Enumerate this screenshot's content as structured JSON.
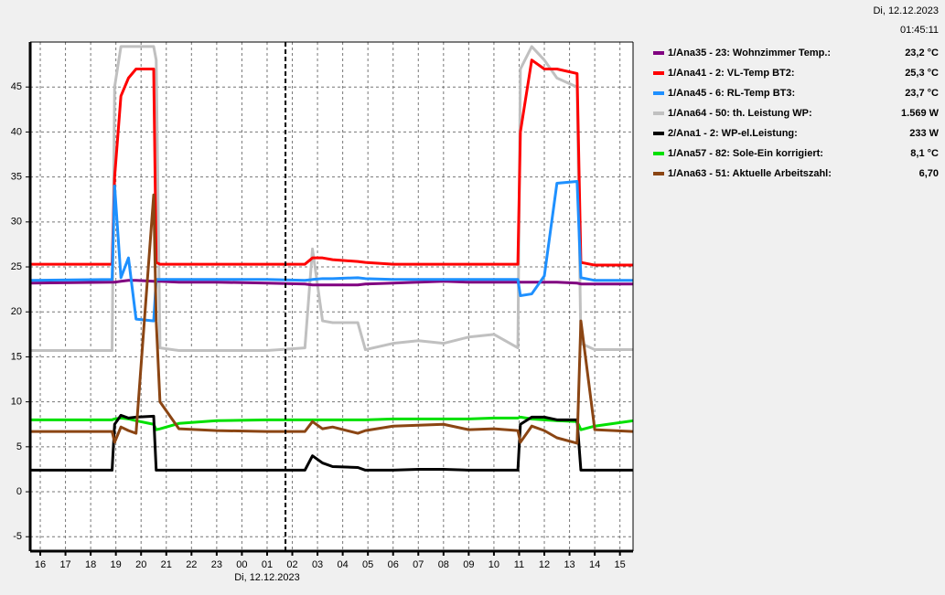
{
  "header": {
    "date": "Di, 12.12.2023",
    "time": "01:45:11"
  },
  "chart_data": {
    "type": "line",
    "x": [
      15.6,
      18.85,
      18.95,
      19.2,
      19.5,
      19.8,
      20.5,
      20.6,
      20.75,
      21.5,
      23,
      25,
      26.5,
      26.8,
      27.2,
      27.6,
      28.6,
      28.9,
      30,
      31,
      32,
      33,
      34,
      34.95,
      35.05,
      35.5,
      36.0,
      36.5,
      37.3,
      37.45,
      38,
      39.52
    ],
    "xlim": [
      15.6,
      39.52
    ],
    "xticks": [
      16,
      17,
      18,
      19,
      20,
      21,
      22,
      23,
      {
        "value": 24,
        "label": "00"
      },
      {
        "value": 25,
        "label": "01"
      },
      {
        "value": 26,
        "label": "02"
      },
      {
        "value": 27,
        "label": "03"
      },
      {
        "value": 28,
        "label": "04"
      },
      {
        "value": 29,
        "label": "05"
      },
      {
        "value": 30,
        "label": "06"
      },
      {
        "value": 31,
        "label": "07"
      },
      {
        "value": 32,
        "label": "08"
      },
      {
        "value": 33,
        "label": "09"
      },
      {
        "value": 34,
        "label": "10"
      },
      {
        "value": 35,
        "label": "11"
      },
      {
        "value": 36,
        "label": "12"
      },
      {
        "value": 37,
        "label": "13"
      },
      {
        "value": 38,
        "label": "14"
      },
      {
        "value": 39,
        "label": "15"
      }
    ],
    "date_label": "Di, 12.12.2023",
    "cursor_x": 25.73,
    "ylim": [
      -6.6,
      50
    ],
    "yticks": [
      -5,
      0,
      5,
      10,
      15,
      20,
      25,
      30,
      35,
      40,
      45
    ],
    "grid": true,
    "series": [
      {
        "name": "1/Ana35 - 23: Wohnzimmer Temp.:",
        "current": "23,2 °C",
        "color": "#800080",
        "values": [
          23.2,
          23.3,
          23.3,
          23.4,
          23.5,
          23.5,
          23.4,
          23.4,
          23.4,
          23.3,
          23.3,
          23.2,
          23.1,
          23.0,
          23.0,
          23.0,
          23.0,
          23.1,
          23.2,
          23.3,
          23.4,
          23.3,
          23.3,
          23.3,
          23.3,
          23.3,
          23.3,
          23.3,
          23.2,
          23.1,
          23.1,
          23.1
        ]
      },
      {
        "name": "1/Ana41 - 2: VL-Temp BT2:",
        "current": "25,3 °C",
        "color": "#ff0000",
        "values": [
          25.3,
          25.3,
          35,
          44,
          46,
          47,
          47,
          25.5,
          25.3,
          25.3,
          25.3,
          25.3,
          25.3,
          26.0,
          26.0,
          25.8,
          25.6,
          25.5,
          25.3,
          25.3,
          25.3,
          25.3,
          25.3,
          25.3,
          40,
          48,
          47,
          47,
          46.5,
          25.5,
          25.2,
          25.2
        ]
      },
      {
        "name": "1/Ana45 - 6: RL-Temp BT3:",
        "current": "23,7 °C",
        "color": "#1e90ff",
        "values": [
          23.5,
          23.6,
          34,
          23.8,
          26,
          19.2,
          19,
          23.6,
          23.6,
          23.6,
          23.6,
          23.6,
          23.5,
          23.6,
          23.7,
          23.7,
          23.8,
          23.7,
          23.6,
          23.6,
          23.6,
          23.6,
          23.6,
          23.6,
          21.8,
          22.0,
          24,
          34.3,
          34.5,
          23.8,
          23.5,
          23.5
        ]
      },
      {
        "name": "1/Ana64 - 50: th. Leistung WP:",
        "current": "1.569 W",
        "color": "#c0c0c0",
        "values": [
          15.7,
          15.7,
          45,
          49.5,
          49.5,
          49.5,
          49.5,
          48,
          16,
          15.7,
          15.7,
          15.7,
          16,
          27,
          19,
          18.8,
          18.8,
          15.8,
          16.5,
          16.8,
          16.5,
          17.2,
          17.5,
          16,
          47,
          49.5,
          48,
          46,
          45,
          16.5,
          15.8,
          15.8
        ]
      },
      {
        "name": "2/Ana1 - 2: WP-el.Leistung:",
        "current": "233 W",
        "color": "#000000",
        "values": [
          2.4,
          2.4,
          7.5,
          8.5,
          8.2,
          8.3,
          8.4,
          2.4,
          2.4,
          2.4,
          2.4,
          2.4,
          2.4,
          4.0,
          3.2,
          2.8,
          2.7,
          2.4,
          2.4,
          2.5,
          2.5,
          2.4,
          2.4,
          2.4,
          7.5,
          8.3,
          8.3,
          8.0,
          8.0,
          2.4,
          2.4,
          2.4
        ]
      },
      {
        "name": "1/Ana57 - 82: Sole-Ein korrigiert:",
        "current": "8,1 °C",
        "color": "#00e000",
        "values": [
          8.0,
          8.0,
          8.1,
          8.2,
          8.1,
          7.9,
          7.5,
          6.9,
          7.0,
          7.6,
          7.9,
          8.0,
          8.0,
          8.0,
          8.0,
          8.0,
          8.0,
          8.0,
          8.1,
          8.1,
          8.1,
          8.1,
          8.2,
          8.2,
          8.3,
          8.1,
          8.0,
          7.9,
          7.8,
          6.9,
          7.3,
          7.9
        ]
      },
      {
        "name": "1/Ana63 - 51: Aktuelle Arbeitszahl:",
        "current": "6,70",
        "color": "#8b4513",
        "values": [
          6.7,
          6.7,
          5.5,
          7.2,
          6.8,
          6.5,
          33,
          19,
          10,
          7.0,
          6.8,
          6.7,
          6.7,
          7.8,
          7.0,
          7.2,
          6.5,
          6.8,
          7.3,
          7.4,
          7.5,
          6.9,
          7.0,
          6.8,
          5.5,
          7.3,
          6.8,
          6.0,
          5.4,
          19,
          6.9,
          6.7
        ]
      }
    ]
  }
}
